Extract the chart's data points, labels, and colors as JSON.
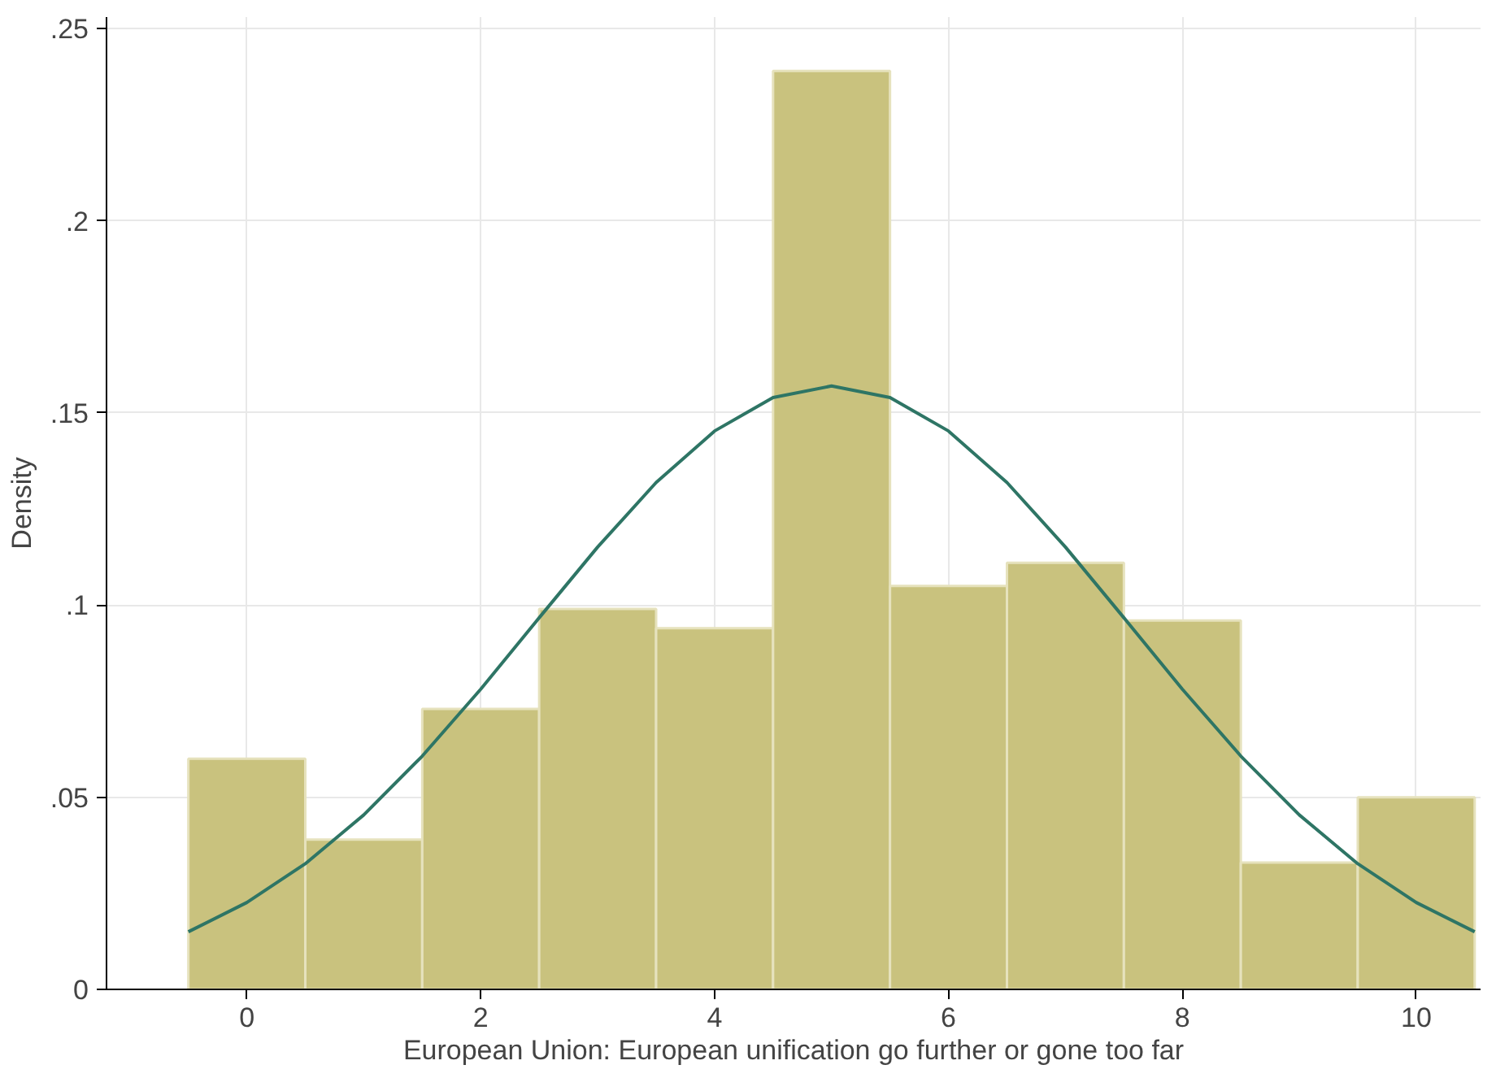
{
  "chart_data": {
    "type": "histogram",
    "xlabel": "European Union: European unification go further or gone too far",
    "ylabel": "Density",
    "bins": [
      -0.5,
      0.5,
      1.5,
      2.5,
      3.5,
      4.5,
      5.5,
      6.5,
      7.5,
      8.5,
      9.5,
      10.5
    ],
    "values": [
      0.06,
      0.039,
      0.073,
      0.099,
      0.094,
      0.239,
      0.105,
      0.111,
      0.096,
      0.033,
      0.05
    ],
    "color": "#c9c27e",
    "series": [
      {
        "type": "line",
        "color": "#2e7565",
        "x": [
          -0.5,
          0,
          0.5,
          1,
          1.5,
          2,
          2.5,
          3,
          3.5,
          4,
          4.5,
          5,
          5.5,
          6,
          6.5,
          7,
          7.5,
          8,
          8.5,
          9,
          9.5,
          10,
          10.5
        ],
        "values": [
          0.015,
          0.0226,
          0.0327,
          0.0454,
          0.0607,
          0.0781,
          0.0967,
          0.1151,
          0.1319,
          0.1453,
          0.154,
          0.157,
          0.154,
          0.1453,
          0.1319,
          0.1151,
          0.0967,
          0.0781,
          0.0607,
          0.0454,
          0.0327,
          0.0226,
          0.015
        ]
      }
    ],
    "xlim": [
      -1.2,
      10.55
    ],
    "ylim": [
      0,
      0.253
    ],
    "xticks": [
      0,
      2,
      4,
      6,
      8,
      10
    ],
    "yticks": [
      0,
      {
        "value": 0.05,
        "label": ".05"
      },
      {
        "value": 0.1,
        "label": ".1"
      },
      {
        "value": 0.15,
        "label": ".15"
      },
      {
        "value": 0.2,
        "label": ".2"
      },
      {
        "value": 0.25,
        "label": ".25"
      }
    ],
    "grid": true
  }
}
